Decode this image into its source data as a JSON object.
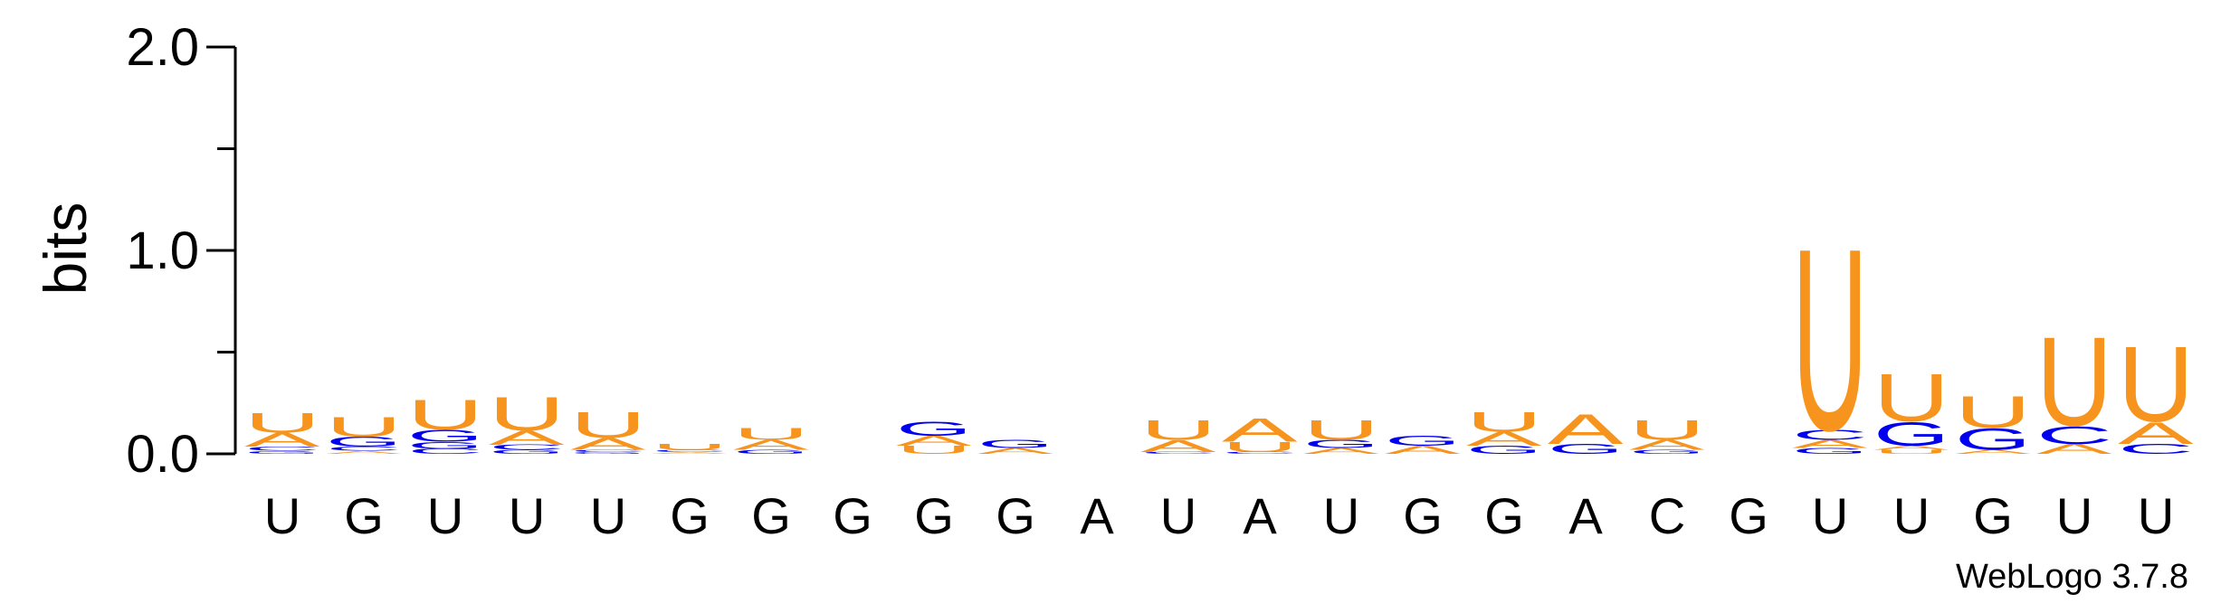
{
  "chart_data": {
    "type": "sequence-logo",
    "ylabel": "bits",
    "ylim": [
      0,
      2.0
    ],
    "yticks": [
      "0.0",
      "1.0",
      "2.0"
    ],
    "credit": "WebLogo 3.7.8",
    "colors": {
      "A": "#f7941d",
      "U": "#f7941d",
      "G": "#0000ee",
      "C": "#0000ee"
    },
    "positions": [
      {
        "label": "U",
        "stack": [
          {
            "base": "G",
            "bits": 0.015
          },
          {
            "base": "C",
            "bits": 0.02
          },
          {
            "base": "A",
            "bits": 0.07
          },
          {
            "base": "U",
            "bits": 0.1
          }
        ]
      },
      {
        "label": "G",
        "stack": [
          {
            "base": "A",
            "bits": 0.015
          },
          {
            "base": "C",
            "bits": 0.02
          },
          {
            "base": "G",
            "bits": 0.05
          },
          {
            "base": "U",
            "bits": 0.1
          }
        ]
      },
      {
        "label": "U",
        "stack": [
          {
            "base": "C",
            "bits": 0.025
          },
          {
            "base": "G",
            "bits": 0.035
          },
          {
            "base": "G",
            "bits": 0.06
          },
          {
            "base": "U",
            "bits": 0.15
          }
        ]
      },
      {
        "label": "U",
        "stack": [
          {
            "base": "G",
            "bits": 0.02
          },
          {
            "base": "C",
            "bits": 0.025
          },
          {
            "base": "A",
            "bits": 0.07
          },
          {
            "base": "U",
            "bits": 0.17
          }
        ]
      },
      {
        "label": "U",
        "stack": [
          {
            "base": "G",
            "bits": 0.01
          },
          {
            "base": "C",
            "bits": 0.01
          },
          {
            "base": "A",
            "bits": 0.06
          },
          {
            "base": "U",
            "bits": 0.13
          }
        ]
      },
      {
        "label": "G",
        "stack": [
          {
            "base": "A",
            "bits": 0.01
          },
          {
            "base": "C",
            "bits": 0.01
          },
          {
            "base": "U",
            "bits": 0.03
          }
        ]
      },
      {
        "label": "G",
        "stack": [
          {
            "base": "G",
            "bits": 0.02
          },
          {
            "base": "A",
            "bits": 0.05
          },
          {
            "base": "U",
            "bits": 0.06
          }
        ]
      },
      {
        "label": "G",
        "stack": []
      },
      {
        "label": "G",
        "stack": [
          {
            "base": "U",
            "bits": 0.04
          },
          {
            "base": "A",
            "bits": 0.05
          },
          {
            "base": "G",
            "bits": 0.07
          }
        ]
      },
      {
        "label": "G",
        "stack": [
          {
            "base": "A",
            "bits": 0.03
          },
          {
            "base": "G",
            "bits": 0.04
          }
        ]
      },
      {
        "label": "A",
        "stack": []
      },
      {
        "label": "U",
        "stack": [
          {
            "base": "C",
            "bits": 0.01
          },
          {
            "base": "A",
            "bits": 0.06
          },
          {
            "base": "U",
            "bits": 0.1
          }
        ]
      },
      {
        "label": "A",
        "stack": [
          {
            "base": "C",
            "bits": 0.01
          },
          {
            "base": "U",
            "bits": 0.05
          },
          {
            "base": "A",
            "bits": 0.12
          }
        ]
      },
      {
        "label": "U",
        "stack": [
          {
            "base": "A",
            "bits": 0.03
          },
          {
            "base": "G",
            "bits": 0.04
          },
          {
            "base": "U",
            "bits": 0.1
          }
        ]
      },
      {
        "label": "G",
        "stack": [
          {
            "base": "A",
            "bits": 0.04
          },
          {
            "base": "G",
            "bits": 0.05
          }
        ]
      },
      {
        "label": "G",
        "stack": [
          {
            "base": "G",
            "bits": 0.04
          },
          {
            "base": "A",
            "bits": 0.07
          },
          {
            "base": "U",
            "bits": 0.1
          }
        ]
      },
      {
        "label": "A",
        "stack": [
          {
            "base": "G",
            "bits": 0.05
          },
          {
            "base": "A",
            "bits": 0.15
          }
        ]
      },
      {
        "label": "C",
        "stack": [
          {
            "base": "G",
            "bits": 0.02
          },
          {
            "base": "A",
            "bits": 0.05
          },
          {
            "base": "U",
            "bits": 0.1
          }
        ]
      },
      {
        "label": "G",
        "stack": []
      },
      {
        "label": "U",
        "stack": [
          {
            "base": "G",
            "bits": 0.03
          },
          {
            "base": "A",
            "bits": 0.04
          },
          {
            "base": "C",
            "bits": 0.05
          },
          {
            "base": "U",
            "bits": 0.92
          }
        ]
      },
      {
        "label": "U",
        "stack": [
          {
            "base": "U",
            "bits": 0.02
          },
          {
            "base": "A",
            "bits": 0.02
          },
          {
            "base": "G",
            "bits": 0.12
          },
          {
            "base": "U",
            "bits": 0.24
          }
        ]
      },
      {
        "label": "G",
        "stack": [
          {
            "base": "A",
            "bits": 0.02
          },
          {
            "base": "G",
            "bits": 0.11
          },
          {
            "base": "U",
            "bits": 0.16
          }
        ]
      },
      {
        "label": "U",
        "stack": [
          {
            "base": "A",
            "bits": 0.05
          },
          {
            "base": "C",
            "bits": 0.09
          },
          {
            "base": "U",
            "bits": 0.45
          }
        ]
      },
      {
        "label": "U",
        "stack": [
          {
            "base": "C",
            "bits": 0.05
          },
          {
            "base": "A",
            "bits": 0.11
          },
          {
            "base": "U",
            "bits": 0.38
          }
        ]
      }
    ]
  }
}
